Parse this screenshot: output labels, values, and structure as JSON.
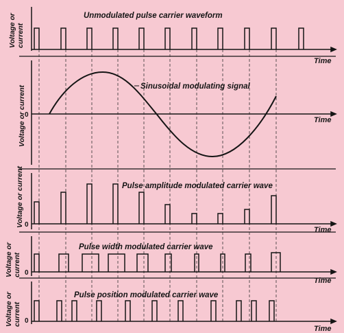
{
  "panels": [
    {
      "title": "Unmodulated pulse carrier waveform",
      "ylabel_line1": "Voltage or",
      "ylabel_line2": "current",
      "xlabel": "Time"
    },
    {
      "title": "Sinusoidal modulating signal",
      "ylabel": "Voltage or current",
      "zero": "0",
      "xlabel": "Time"
    },
    {
      "title": "Pulse amplitude modulated carrier wave",
      "ylabel": "Voltage or current",
      "zero": "0",
      "xlabel": "Time"
    },
    {
      "title": "Pulse width modulated carrier wave",
      "ylabel_line1": "Voltage or",
      "ylabel_line2": "current",
      "zero": "0",
      "xlabel": "Time"
    },
    {
      "title": "Pulse position modulated carrier wave",
      "ylabel_line1": "Voltage or",
      "ylabel_line2": "current",
      "zero": "0",
      "xlabel": "Time"
    }
  ],
  "colors": {
    "background": "#f7c9d2",
    "ink": "#151515"
  }
}
